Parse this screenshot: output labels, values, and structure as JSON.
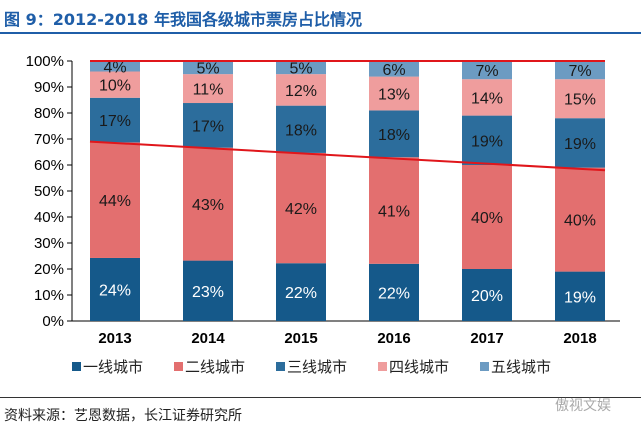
{
  "title": "图 9：2012-2018 年我国各级城市票房占比情况",
  "source": "资料来源：艺恩数据，长江证券研究所",
  "watermark": "傲视文娱",
  "chart_data": {
    "type": "bar",
    "stacked": true,
    "categories": [
      "2013",
      "2014",
      "2015",
      "2016",
      "2017",
      "2018"
    ],
    "series": [
      {
        "name": "一线城市",
        "color": "#15598a",
        "values": [
          24,
          23,
          22,
          22,
          20,
          19
        ]
      },
      {
        "name": "二线城市",
        "color": "#e36f6f",
        "values": [
          44,
          43,
          42,
          41,
          40,
          40
        ]
      },
      {
        "name": "三线城市",
        "color": "#2c6d9c",
        "values": [
          17,
          17,
          18,
          18,
          19,
          19
        ]
      },
      {
        "name": "四线城市",
        "color": "#ef9d9d",
        "values": [
          10,
          11,
          12,
          13,
          14,
          15
        ]
      },
      {
        "name": "五线城市",
        "color": "#6c9bc2",
        "values": [
          4,
          5,
          5,
          6,
          7,
          7
        ]
      }
    ],
    "ylim": [
      0,
      100
    ],
    "yticks": [
      "0%",
      "10%",
      "20%",
      "30%",
      "40%",
      "50%",
      "60%",
      "70%",
      "80%",
      "90%",
      "100%"
    ],
    "legend": "bottom",
    "grid": false,
    "annotations": [
      {
        "type": "line",
        "color": "#e0161b",
        "from": [
          "2013",
          100
        ],
        "to": [
          "2018",
          100
        ]
      },
      {
        "type": "line",
        "color": "#e0161b",
        "from": [
          "2013",
          69
        ],
        "to": [
          "2018",
          58
        ]
      }
    ]
  }
}
